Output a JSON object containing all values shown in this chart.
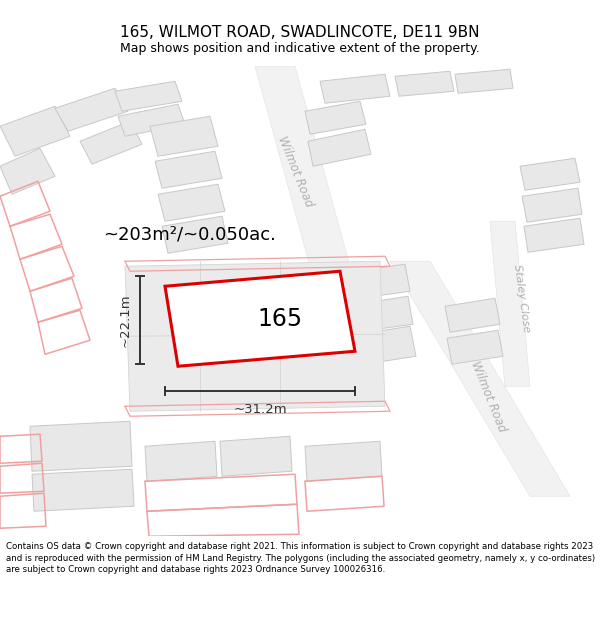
{
  "title_line1": "165, WILMOT ROAD, SWADLINCOTE, DE11 9BN",
  "title_line2": "Map shows position and indicative extent of the property.",
  "footer_text": "Contains OS data © Crown copyright and database right 2021. This information is subject to Crown copyright and database rights 2023 and is reproduced with the permission of HM Land Registry. The polygons (including the associated geometry, namely x, y co-ordinates) are subject to Crown copyright and database rights 2023 Ordnance Survey 100026316.",
  "area_label": "~203m²/~0.050ac.",
  "width_label": "~31.2m",
  "height_label": "~22.1m",
  "number_label": "165",
  "bg_color": "#ffffff",
  "map_bg": "#f8f8f8",
  "building_fill": "#e8e8e8",
  "building_edge": "#c8c8c8",
  "highlight_color": "#dd0000",
  "dim_color": "#333333",
  "road_label_color": "#b0b0b0",
  "pink_color": "#f0a0a0",
  "title_fontsize": 11,
  "subtitle_fontsize": 9,
  "footer_fontsize": 6.2,
  "label_fontsize": 13,
  "dim_fontsize": 9.5,
  "number_fontsize": 17
}
